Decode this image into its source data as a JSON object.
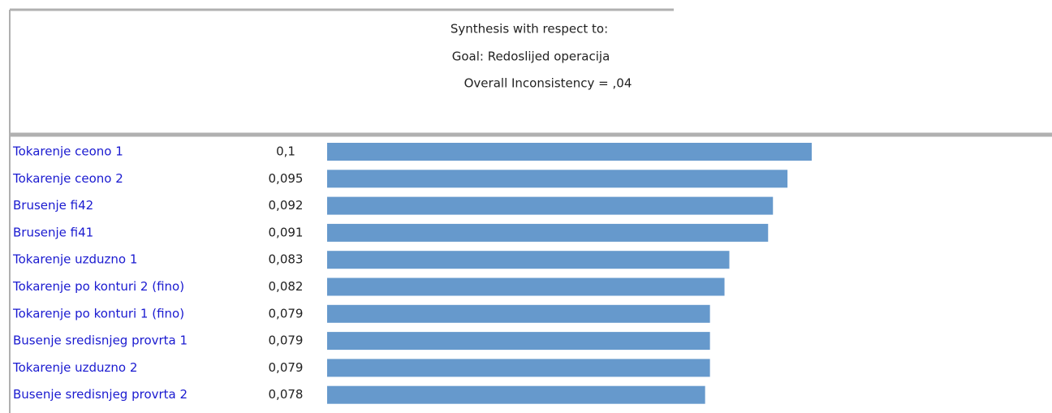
{
  "chart_data": {
    "type": "bar",
    "orientation": "horizontal",
    "title": "Synthesis with respect to:",
    "subtitle": "Goal: Redoslijed operacija",
    "annotation": "Overall Inconsistency = ,04",
    "categories": [
      "Tokarenje ceono 1",
      "Tokarenje ceono 2",
      "Brusenje fi42",
      "Brusenje fi41",
      "Tokarenje uzduzno 1",
      "Tokarenje po konturi 2 (fino)",
      "Tokarenje po konturi 1 (fino)",
      "Busenje sredisnjeg provrta 1",
      "Tokarenje uzduzno 2",
      "Busenje sredisnjeg provrta 2"
    ],
    "values": [
      0.1,
      0.095,
      0.092,
      0.091,
      0.083,
      0.082,
      0.079,
      0.079,
      0.079,
      0.078
    ],
    "value_labels": [
      "0,1",
      "0,095",
      "0,092",
      "0,091",
      "0,083",
      "0,082",
      "0,079",
      "0,079",
      "0,079",
      "0,078"
    ],
    "color": "#6699cc"
  }
}
